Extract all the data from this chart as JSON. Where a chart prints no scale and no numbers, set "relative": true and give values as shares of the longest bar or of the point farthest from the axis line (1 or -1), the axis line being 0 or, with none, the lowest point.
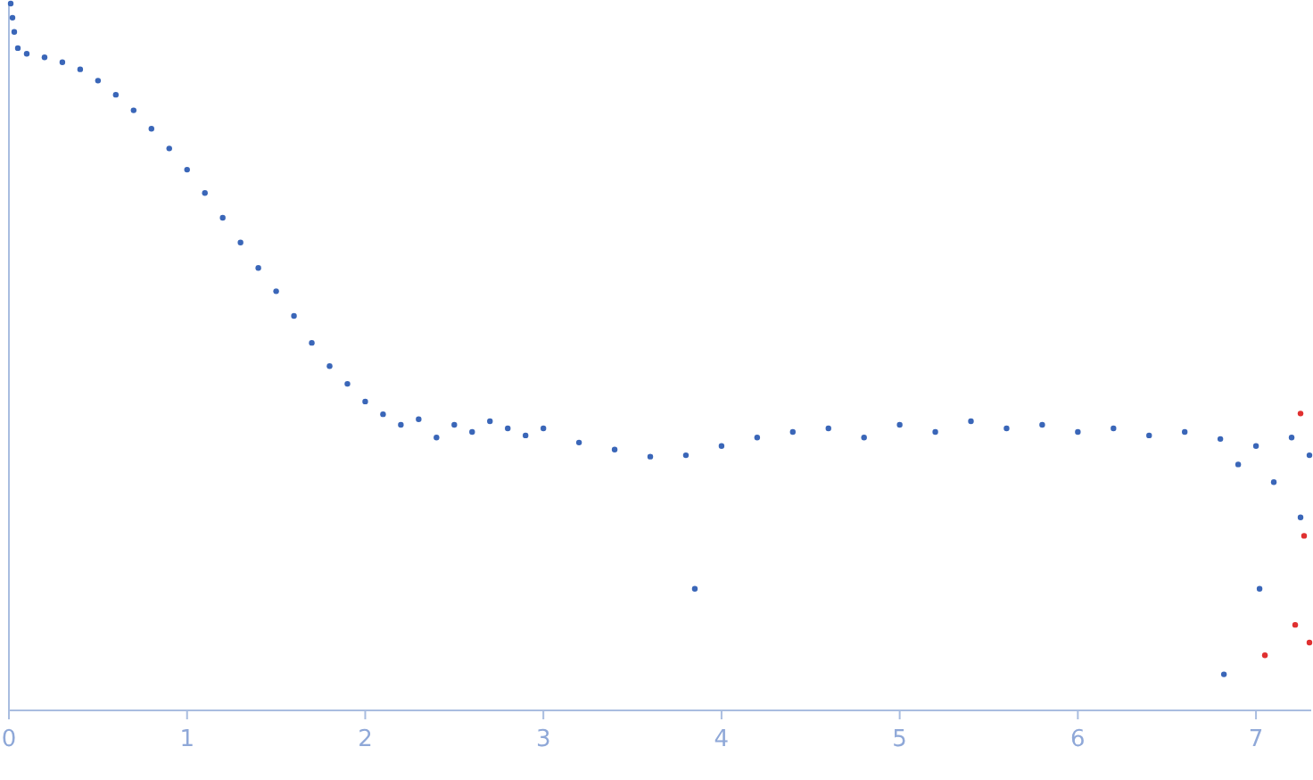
{
  "chart_data": {
    "type": "scatter",
    "relative": true,
    "xlim": [
      0,
      7.31
    ],
    "xticks": [
      0,
      1,
      2,
      3,
      4,
      5,
      6,
      7
    ],
    "tick_labels": "x",
    "marker": "circle",
    "grid": false,
    "series": [
      {
        "color": "#3a66b8",
        "x": [
          0.01,
          0.02,
          0.03,
          0.05,
          0.1,
          0.2,
          0.3,
          0.4,
          0.5,
          0.6,
          0.7,
          0.8,
          0.9,
          1.0,
          1.1,
          1.2,
          1.3,
          1.4,
          1.5,
          1.6,
          1.7,
          1.8,
          1.9,
          2.0,
          2.1,
          2.2,
          2.3,
          2.4,
          2.5,
          2.6,
          2.7,
          2.8,
          2.9,
          3.0,
          3.2,
          3.4,
          3.6,
          3.8,
          3.85,
          4.0,
          4.2,
          4.4,
          4.6,
          4.8,
          5.0,
          5.2,
          5.4,
          5.6,
          5.8,
          6.0,
          6.2,
          6.4,
          6.6,
          6.8,
          6.82,
          6.9,
          7.0,
          7.02,
          7.1,
          7.2,
          7.25,
          7.3
        ],
        "values": [
          1.0,
          0.98,
          0.96,
          0.937,
          0.929,
          0.924,
          0.917,
          0.907,
          0.891,
          0.871,
          0.849,
          0.823,
          0.795,
          0.765,
          0.732,
          0.697,
          0.662,
          0.626,
          0.593,
          0.558,
          0.52,
          0.487,
          0.462,
          0.437,
          0.419,
          0.404,
          0.412,
          0.386,
          0.404,
          0.394,
          0.409,
          0.399,
          0.389,
          0.399,
          0.379,
          0.369,
          0.359,
          0.361,
          0.172,
          0.374,
          0.386,
          0.394,
          0.399,
          0.386,
          0.404,
          0.394,
          0.409,
          0.399,
          0.404,
          0.394,
          0.399,
          0.389,
          0.394,
          0.384,
          0.051,
          0.348,
          0.374,
          0.172,
          0.323,
          0.386,
          0.273,
          0.361
        ]
      },
      {
        "color": "#e03030",
        "x": [
          7.05,
          7.22,
          7.25,
          7.27,
          7.3
        ],
        "values": [
          0.078,
          0.121,
          0.42,
          0.247,
          0.096
        ]
      }
    ]
  }
}
